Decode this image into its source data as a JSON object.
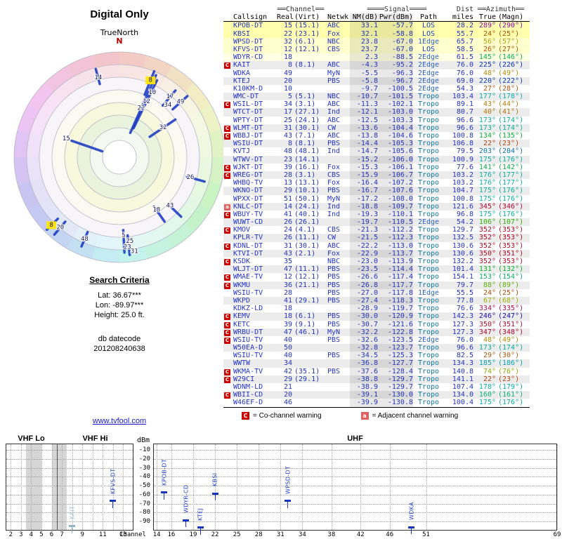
{
  "colors": {
    "data_blue": "#2333bb",
    "warning_red": "#cc0000",
    "link_blue": "#1a1acc",
    "spoke_blue": "#1535c0"
  },
  "search": {
    "heading": "Search Criteria",
    "lat": "Lat: 36.67***",
    "lon": "Lon: -89.97***",
    "height": "Height: 25.0 ft.",
    "datecode_label": "db datecode",
    "datecode": "201208240638",
    "link": "www.tvfool.com"
  },
  "legend": {
    "c_symbol": "C",
    "c_text": "= Co-channel warning",
    "a_symbol": "a",
    "a_text": "= Adjacent channel warning"
  },
  "table": {
    "header_groups": {
      "channel": "══Channel══",
      "signal": "════Signal════",
      "dist": "Dist",
      "azimuth": "══Azimuth══"
    },
    "columns": {
      "callsign": "Callsign",
      "real": "Real",
      "virt": "(Virt)",
      "netwk": "Netwk",
      "nm": "NM(dB)",
      "pwr": "Pwr(dBm)",
      "path": "Path",
      "miles": "miles",
      "true": "True",
      "magn": "(Magn)"
    },
    "rows": [
      {
        "w": "",
        "cs": "KPOB-DT",
        "re": "15",
        "vi": "(15.1)",
        "nw": "ABC",
        "nm": "33.1",
        "pw": "-57.7",
        "pa": "LOS",
        "mi": "28.2",
        "tr": 289,
        "mg": 290
      },
      {
        "w": "",
        "cs": "KBSI",
        "re": "22",
        "vi": "(23.1)",
        "nw": "Fox",
        "nm": "32.1",
        "pw": "-58.8",
        "pa": "LOS",
        "mi": "55.7",
        "tr": 24,
        "mg": 25
      },
      {
        "w": "",
        "cs": "WPSD-DT",
        "re": "32",
        "vi": "(6.1)",
        "nw": "NBC",
        "nm": "23.8",
        "pw": "-67.0",
        "pa": "1Edge",
        "mi": "65.7",
        "tr": 56,
        "mg": 57
      },
      {
        "w": "",
        "cs": "KFVS-DT",
        "re": "12",
        "vi": "(12.1)",
        "nw": "CBS",
        "nm": "23.7",
        "pw": "-67.0",
        "pa": "LOS",
        "mi": "58.5",
        "tr": 26,
        "mg": 27
      },
      {
        "w": "",
        "cs": "WDYR-CD",
        "re": "18",
        "vi": "",
        "nw": "",
        "nm": "2.3",
        "pw": "-88.5",
        "pa": "2Edge",
        "mi": "61.5",
        "tr": 145,
        "mg": 146
      },
      {
        "w": "C",
        "cs": "KAIT",
        "re": "8",
        "vi": "(8.1)",
        "nw": "ABC",
        "nm": "-4.3",
        "pw": "-95.2",
        "pa": "2Edge",
        "mi": "76.0",
        "tr": 225,
        "mg": 226
      },
      {
        "w": "",
        "cs": "WDKA",
        "re": "49",
        "vi": "",
        "nw": "MyN",
        "nm": "-5.5",
        "pw": "-96.3",
        "pa": "2Edge",
        "mi": "76.0",
        "tr": 48,
        "mg": 49
      },
      {
        "w": "",
        "cs": "KTEJ",
        "re": "20",
        "vi": "",
        "nw": "PBS",
        "nm": "-5.8",
        "pw": "-96.7",
        "pa": "2Edge",
        "mi": "69.0",
        "tr": 220,
        "mg": 222
      },
      {
        "w": "",
        "cs": "K10KM-D",
        "re": "10",
        "vi": "",
        "nw": "",
        "nm": "-9.7",
        "pw": "-100.5",
        "pa": "2Edge",
        "mi": "54.3",
        "tr": 27,
        "mg": 28
      },
      {
        "w": "",
        "cs": "WMC-DT",
        "re": "5",
        "vi": "(5.1)",
        "nw": "NBC",
        "nm": "-10.7",
        "pw": "-101.5",
        "pa": "Tropo",
        "mi": "103.4",
        "tr": 177,
        "mg": 178
      },
      {
        "w": "C",
        "cs": "WSIL-DT",
        "re": "34",
        "vi": "(3.1)",
        "nw": "ABC",
        "nm": "-11.3",
        "pw": "-102.1",
        "pa": "Tropo",
        "mi": "89.1",
        "tr": 43,
        "mg": 44
      },
      {
        "w": "",
        "cs": "WTCT-DT",
        "re": "17",
        "vi": "(27.1)",
        "nw": "Ind",
        "nm": "-12.1",
        "pw": "-103.0",
        "pa": "Tropo",
        "mi": "80.7",
        "tr": 40,
        "mg": 41
      },
      {
        "w": "",
        "cs": "WPTY-DT",
        "re": "25",
        "vi": "(24.1)",
        "nw": "ABC",
        "nm": "-12.5",
        "pw": "-103.3",
        "pa": "Tropo",
        "mi": "96.6",
        "tr": 173,
        "mg": 174
      },
      {
        "w": "C",
        "cs": "WLMT-DT",
        "re": "31",
        "vi": "(30.1)",
        "nw": "CW",
        "nm": "-13.6",
        "pw": "-104.4",
        "pa": "Tropo",
        "mi": "96.6",
        "tr": 173,
        "mg": 174
      },
      {
        "w": "C",
        "cs": "WBBJ-DT",
        "re": "43",
        "vi": "(7.1)",
        "nw": "ABC",
        "nm": "-13.8",
        "pw": "-104.6",
        "pa": "Tropo",
        "mi": "100.8",
        "tr": 134,
        "mg": 135
      },
      {
        "w": "",
        "cs": "WSIU-DT",
        "re": "8",
        "vi": "(8.1)",
        "nw": "PBS",
        "nm": "-14.4",
        "pw": "-105.3",
        "pa": "Tropo",
        "mi": "106.8",
        "tr": 22,
        "mg": 23
      },
      {
        "w": "",
        "cs": "KVTJ",
        "re": "48",
        "vi": "(48.1)",
        "nw": "Ind",
        "nm": "-14.7",
        "pw": "-105.6",
        "pa": "Tropo",
        "mi": "79.5",
        "tr": 203,
        "mg": 204
      },
      {
        "w": "",
        "cs": "WTWV-DT",
        "re": "23",
        "vi": "(14.1)",
        "nw": "",
        "nm": "-15.2",
        "pw": "-106.0",
        "pa": "Tropo",
        "mi": "100.9",
        "tr": 175,
        "mg": 176
      },
      {
        "w": "C",
        "cs": "WJKT-DT",
        "re": "39",
        "vi": "(16.1)",
        "nw": "Fox",
        "nm": "-15.3",
        "pw": "-106.1",
        "pa": "Tropo",
        "mi": "77.6",
        "tr": 141,
        "mg": 142
      },
      {
        "w": "C",
        "cs": "WREG-DT",
        "re": "28",
        "vi": "(3.1)",
        "nw": "CBS",
        "nm": "-15.9",
        "pw": "-106.7",
        "pa": "Tropo",
        "mi": "103.2",
        "tr": 176,
        "mg": 177
      },
      {
        "w": "",
        "cs": "WHBQ-TV",
        "re": "13",
        "vi": "(13.1)",
        "nw": "Fox",
        "nm": "-16.4",
        "pw": "-107.2",
        "pa": "Tropo",
        "mi": "103.2",
        "tr": 176,
        "mg": 177
      },
      {
        "w": "",
        "cs": "WKNO-DT",
        "re": "29",
        "vi": "(10.1)",
        "nw": "PBS",
        "nm": "-16.7",
        "pw": "-107.6",
        "pa": "Tropo",
        "mi": "104.7",
        "tr": 175,
        "mg": 176
      },
      {
        "w": "",
        "cs": "WPXX-DT",
        "re": "51",
        "vi": "(50.1)",
        "nw": "MyN",
        "nm": "-17.2",
        "pw": "-108.0",
        "pa": "Tropo",
        "mi": "100.8",
        "tr": 175,
        "mg": 176
      },
      {
        "w": "a",
        "cs": "KNLC-DT",
        "re": "14",
        "vi": "(24.1)",
        "nw": "Ind",
        "nm": "-18.8",
        "pw": "-109.7",
        "pa": "Tropo",
        "mi": "121.6",
        "tr": 345,
        "mg": 346
      },
      {
        "w": "C",
        "cs": "WBUY-TV",
        "re": "41",
        "vi": "(40.1)",
        "nw": "Ind",
        "nm": "-19.3",
        "pw": "-110.1",
        "pa": "Tropo",
        "mi": "96.8",
        "tr": 175,
        "mg": 176
      },
      {
        "w": "",
        "cs": "WUWT-CD",
        "re": "26",
        "vi": "(26.1)",
        "nw": "",
        "nm": "-19.7",
        "pw": "-110.5",
        "pa": "2Edge",
        "mi": "54.2",
        "tr": 106,
        "mg": 107
      },
      {
        "w": "C",
        "cs": "KMOV",
        "re": "24",
        "vi": "(4.1)",
        "nw": "CBS",
        "nm": "-21.3",
        "pw": "-112.2",
        "pa": "Tropo",
        "mi": "129.7",
        "tr": 352,
        "mg": 353
      },
      {
        "w": "",
        "cs": "KPLR-TV",
        "re": "26",
        "vi": "(11.1)",
        "nw": "CW",
        "nm": "-21.5",
        "pw": "-112.3",
        "pa": "Tropo",
        "mi": "132.5",
        "tr": 352,
        "mg": 353
      },
      {
        "w": "C",
        "cs": "KDNL-DT",
        "re": "31",
        "vi": "(30.1)",
        "nw": "ABC",
        "nm": "-22.2",
        "pw": "-113.0",
        "pa": "Tropo",
        "mi": "130.6",
        "tr": 352,
        "mg": 353
      },
      {
        "w": "",
        "cs": "KTVI-DT",
        "re": "43",
        "vi": "(2.1)",
        "nw": "Fox",
        "nm": "-22.9",
        "pw": "-113.7",
        "pa": "Tropo",
        "mi": "130.6",
        "tr": 350,
        "mg": 351
      },
      {
        "w": "C",
        "cs": "KSDK",
        "re": "35",
        "vi": "",
        "nw": "NBC",
        "nm": "-23.0",
        "pw": "-113.9",
        "pa": "Tropo",
        "mi": "132.2",
        "tr": 352,
        "mg": 353
      },
      {
        "w": "",
        "cs": "WLJT-DT",
        "re": "47",
        "vi": "(11.1)",
        "nw": "PBS",
        "nm": "-23.5",
        "pw": "-114.4",
        "pa": "Tropo",
        "mi": "101.4",
        "tr": 131,
        "mg": 132
      },
      {
        "w": "C",
        "cs": "WMAE-TV",
        "re": "12",
        "vi": "(12.1)",
        "nw": "PBS",
        "nm": "-26.6",
        "pw": "-117.4",
        "pa": "Tropo",
        "mi": "154.1",
        "tr": 153,
        "mg": 154
      },
      {
        "w": "C",
        "cs": "WKMU",
        "re": "36",
        "vi": "(21.1)",
        "nw": "PBS",
        "nm": "-26.8",
        "pw": "-117.7",
        "pa": "Tropo",
        "mi": "79.7",
        "tr": 88,
        "mg": 89
      },
      {
        "w": "",
        "cs": "WSIU-TV",
        "re": "28",
        "vi": "",
        "nw": "PBS",
        "nm": "-27.0",
        "pw": "-117.8",
        "pa": "1Edge",
        "mi": "55.5",
        "tr": 24,
        "mg": 25
      },
      {
        "w": "",
        "cs": "WKPD",
        "re": "41",
        "vi": "(29.1)",
        "nw": "PBS",
        "nm": "-27.4",
        "pw": "-118.3",
        "pa": "Tropo",
        "mi": "77.8",
        "tr": 67,
        "mg": 68
      },
      {
        "w": "",
        "cs": "KDKZ-LD",
        "re": "18",
        "vi": "",
        "nw": "",
        "nm": "-28.9",
        "pw": "-119.7",
        "pa": "Tropo",
        "mi": "76.6",
        "tr": 334,
        "mg": 335
      },
      {
        "w": "C",
        "cs": "KEMV",
        "re": "18",
        "vi": "(6.1)",
        "nw": "PBS",
        "nm": "-30.0",
        "pw": "-120.9",
        "pa": "Tropo",
        "mi": "142.3",
        "tr": 246,
        "mg": 247
      },
      {
        "w": "C",
        "cs": "KETC",
        "re": "39",
        "vi": "(9.1)",
        "nw": "PBS",
        "nm": "-30.7",
        "pw": "-121.6",
        "pa": "Tropo",
        "mi": "127.3",
        "tr": 350,
        "mg": 351
      },
      {
        "w": "C",
        "cs": "WRBU-DT",
        "re": "47",
        "vi": "(46.1)",
        "nw": "MyN",
        "nm": "-32.2",
        "pw": "-122.8",
        "pa": "Tropo",
        "mi": "127.3",
        "tr": 347,
        "mg": 348
      },
      {
        "w": "C",
        "cs": "WSIU-TV",
        "re": "40",
        "vi": "",
        "nw": "PBS",
        "nm": "-32.6",
        "pw": "-123.5",
        "pa": "2Edge",
        "mi": "76.0",
        "tr": 48,
        "mg": 49
      },
      {
        "w": "",
        "cs": "W50EA-D",
        "re": "50",
        "vi": "",
        "nw": "",
        "nm": "-32.8",
        "pw": "-123.7",
        "pa": "Tropo",
        "mi": "96.6",
        "tr": 173,
        "mg": 174
      },
      {
        "w": "",
        "cs": "WSIU-TV",
        "re": "40",
        "vi": "",
        "nw": "PBS",
        "nm": "-34.5",
        "pw": "-125.3",
        "pa": "Tropo",
        "mi": "82.5",
        "tr": 29,
        "mg": 30
      },
      {
        "w": "",
        "cs": "WWTW",
        "re": "34",
        "vi": "",
        "nw": "",
        "nm": "-36.8",
        "pw": "-127.7",
        "pa": "Tropo",
        "mi": "134.3",
        "tr": 185,
        "mg": 186
      },
      {
        "w": "C",
        "cs": "WKMA-TV",
        "re": "42",
        "vi": "(35.1)",
        "nw": "PBS",
        "nm": "-37.6",
        "pw": "-128.4",
        "pa": "Tropo",
        "mi": "140.8",
        "tr": 74,
        "mg": 76
      },
      {
        "w": "C",
        "cs": "W29CI",
        "re": "29",
        "vi": "(29.1)",
        "nw": "",
        "nm": "-38.8",
        "pw": "-129.7",
        "pa": "Tropo",
        "mi": "141.1",
        "tr": 22,
        "mg": 23
      },
      {
        "w": "",
        "cs": "WDNM-LD",
        "re": "21",
        "vi": "",
        "nw": "",
        "nm": "-38.9",
        "pw": "-129.7",
        "pa": "Tropo",
        "mi": "107.4",
        "tr": 178,
        "mg": 179
      },
      {
        "w": "C",
        "cs": "WBII-CD",
        "re": "20",
        "vi": "",
        "nw": "",
        "nm": "-39.1",
        "pw": "-130.0",
        "pa": "Tropo",
        "mi": "134.0",
        "tr": 160,
        "mg": 161
      },
      {
        "w": "",
        "cs": "W46EF-D",
        "re": "46",
        "vi": "",
        "nw": "",
        "nm": "-39.9",
        "pw": "-130.8",
        "pa": "Tropo",
        "mi": "100.4",
        "tr": 175,
        "mg": 176
      }
    ]
  },
  "chart_data": [
    {
      "id": "signal-power-by-channel",
      "type": "scatter",
      "xlabel": "Channel",
      "ylabel": "dBm",
      "ylim": [
        -100,
        -10
      ],
      "y_ticks": [
        -10,
        -20,
        -30,
        -40,
        -50,
        -60,
        -70,
        -80,
        -90
      ],
      "sections": [
        {
          "label": "VHF Lo",
          "range": [
            2,
            6
          ]
        },
        {
          "label": "VHF Hi",
          "range": [
            7,
            13
          ]
        },
        {
          "label": "UHF",
          "range": [
            14,
            69
          ]
        }
      ],
      "vhf_ticks": [
        2,
        3,
        4,
        5,
        6,
        7,
        9,
        11,
        13
      ],
      "uhf_ticks": [
        14,
        16,
        19,
        22,
        25,
        28,
        31,
        34,
        38,
        42,
        46,
        51,
        69
      ],
      "points": [
        {
          "callsign": "KAIT",
          "channel": 8,
          "dbm": -95.2,
          "muted": true
        },
        {
          "callsign": "KFVS-DT",
          "channel": 12,
          "dbm": -67.0
        },
        {
          "callsign": "KPOB-DT",
          "channel": 15,
          "dbm": -57.7
        },
        {
          "callsign": "WDYR-CD",
          "channel": 18,
          "dbm": -88.5
        },
        {
          "callsign": "KTEJ",
          "channel": 20,
          "dbm": -96.7
        },
        {
          "callsign": "KBSI",
          "channel": 22,
          "dbm": -58.8
        },
        {
          "callsign": "WPSD-DT",
          "channel": 32,
          "dbm": -67.0
        },
        {
          "callsign": "WDKA",
          "channel": 49,
          "dbm": -96.3
        }
      ]
    },
    {
      "id": "azimuth-radar",
      "type": "scatter",
      "title": "Digital Only",
      "north_label": "TrueNorth",
      "n_marker": "N",
      "labels": [
        {
          "ch": "15",
          "az": 289,
          "r": 80
        },
        {
          "ch": "22",
          "az": 24,
          "r": 76
        },
        {
          "ch": "12",
          "az": 26,
          "r": 88
        },
        {
          "ch": "10",
          "az": 27,
          "r": 103
        },
        {
          "ch": "32",
          "az": 56,
          "r": 75
        },
        {
          "ch": "8",
          "az": 22,
          "r": 118,
          "hl": true
        },
        {
          "ch": "17",
          "az": 40,
          "r": 112
        },
        {
          "ch": "34",
          "az": 43,
          "r": 101
        },
        {
          "ch": "49",
          "az": 48,
          "r": 117
        },
        {
          "ch": "14",
          "az": 345,
          "r": 117
        },
        {
          "ch": "26",
          "az": 106,
          "r": 105
        },
        {
          "ch": "18",
          "az": 145,
          "r": 92
        },
        {
          "ch": "43",
          "az": 134,
          "r": 100
        },
        {
          "ch": "8",
          "az": 225,
          "r": 137,
          "hl": true
        },
        {
          "ch": "20",
          "az": 220,
          "r": 131
        },
        {
          "ch": "48",
          "az": 203,
          "r": 127
        },
        {
          "ch": "5",
          "az": 177,
          "r": 112
        },
        {
          "ch": "25",
          "az": 173,
          "r": 121
        },
        {
          "ch": "23",
          "az": 175,
          "r": 129
        },
        {
          "ch": "31",
          "az": 171,
          "r": 136
        }
      ],
      "spokes": [
        [
          289,
          26,
          72
        ],
        [
          24,
          38,
          128
        ],
        [
          26,
          46,
          122
        ],
        [
          56,
          52,
          96
        ],
        [
          22,
          96,
          132
        ],
        [
          145,
          86,
          112
        ],
        [
          134,
          98,
          122
        ],
        [
          177,
          104,
          136
        ],
        [
          174,
          112,
          140
        ],
        [
          203,
          116,
          138
        ],
        [
          220,
          120,
          144
        ],
        [
          225,
          124,
          146
        ],
        [
          106,
          100,
          126
        ],
        [
          40,
          96,
          124
        ],
        [
          48,
          102,
          130
        ],
        [
          345,
          108,
          130
        ]
      ]
    }
  ]
}
